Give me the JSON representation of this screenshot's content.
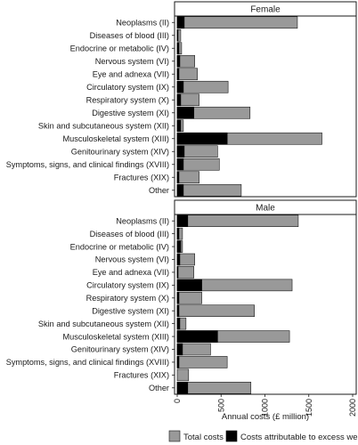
{
  "chart_data": {
    "type": "bar",
    "orientation": "horizontal",
    "stacking": "overlay",
    "categories": [
      "Neoplasms (II)",
      "Diseases of blood (III)",
      "Endocrine or metabolic (IV)",
      "Nervous system (VI)",
      "Eye and adnexa (VII)",
      "Circulatory system (IX)",
      "Respiratory system (X)",
      "Digestive system (XI)",
      "Skin and subcutaneous system (XII)",
      "Musculoskeletal system (XIII)",
      "Genitourinary system (XIV)",
      "Symptoms, signs, and clinical findings (XVIII)",
      "Fractures (XIX)",
      "Other"
    ],
    "panels": [
      {
        "label": "Female",
        "series": [
          {
            "name": "Total costs",
            "color": "#999999",
            "values": [
              1370,
              40,
              50,
              200,
              230,
              580,
              250,
              830,
              70,
              1650,
              460,
              480,
              250,
              730
            ]
          },
          {
            "name": "Costs attributable to excess weight",
            "color": "#000000",
            "values": [
              80,
              10,
              20,
              30,
              20,
              70,
              40,
              190,
              40,
              570,
              80,
              70,
              20,
              70
            ]
          }
        ]
      },
      {
        "label": "Male",
        "series": [
          {
            "name": "Total costs",
            "color": "#999999",
            "values": [
              1380,
              60,
              60,
              200,
              190,
              1310,
              280,
              880,
              100,
              1280,
              380,
              570,
              130,
              840
            ]
          },
          {
            "name": "Costs attributable to excess weight",
            "color": "#000000",
            "values": [
              120,
              20,
              40,
              30,
              10,
              280,
              20,
              20,
              30,
              460,
              60,
              20,
              0,
              120
            ]
          }
        ]
      }
    ],
    "xlabel": "Annual costs (£ million)",
    "xlim": [
      0,
      2000
    ],
    "xticks": [
      "0",
      "500",
      "1000",
      "1500",
      "2000"
    ],
    "xtick_values": [
      0,
      500,
      1000,
      1500,
      2000
    ],
    "grid": false,
    "legend": {
      "position": "bottom",
      "entries": [
        "Total costs",
        "Costs attributable to excess weight"
      ]
    }
  }
}
